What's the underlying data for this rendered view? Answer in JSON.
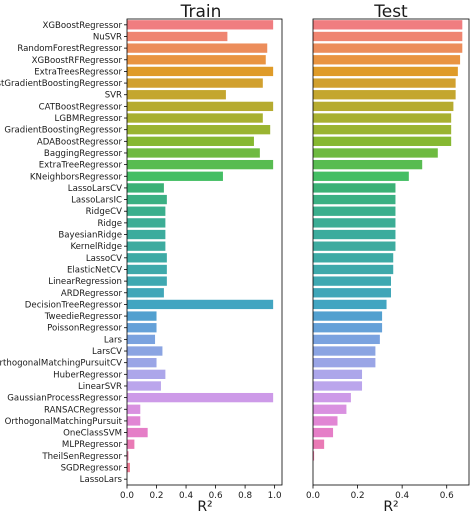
{
  "chart_data": [
    {
      "type": "bar",
      "orientation": "horizontal",
      "title": "Train",
      "xlabel": "R²",
      "xlim": [
        0,
        1.05
      ],
      "xticks": [
        "0.0",
        "0.2",
        "0.4",
        "0.6",
        "0.8",
        "1.0"
      ],
      "grid": false,
      "categories": [
        "XGBoostRegressor",
        "NuSVR",
        "RandomForestRegressor",
        "XGBoostRFRegressor",
        "ExtraTreesRegressor",
        "HistGradientBoostingRegressor",
        "SVR",
        "CATBoostRegressor",
        "LGBMRegressor",
        "GradientBoostingRegressor",
        "ADABoostRegressor",
        "BaggingRegressor",
        "ExtraTreeRegressor",
        "KNeighborsRegressor",
        "LassoLarsCV",
        "LassoLarsIC",
        "RidgeCV",
        "Ridge",
        "BayesianRidge",
        "KernelRidge",
        "LassoCV",
        "ElasticNetCV",
        "LinearRegression",
        "ARDRegressor",
        "DecisionTreeRegressor",
        "TweedieRegressor",
        "PoissonRegressor",
        "Lars",
        "LarsCV",
        "OrthogonalMatchingPursuitCV",
        "HuberRegressor",
        "LinearSVR",
        "GaussianProcessRegressor",
        "RANSACRegressor",
        "OrthogonalMatchingPursuit",
        "OneClassSVM",
        "MLPRegressor",
        "TheilSenRegressor",
        "SGDRegressor",
        "LassoLars"
      ],
      "values": [
        0.99,
        0.68,
        0.95,
        0.94,
        0.99,
        0.92,
        0.67,
        0.99,
        0.92,
        0.97,
        0.86,
        0.9,
        0.99,
        0.65,
        0.25,
        0.27,
        0.26,
        0.26,
        0.26,
        0.26,
        0.27,
        0.27,
        0.27,
        0.25,
        0.99,
        0.2,
        0.2,
        0.19,
        0.24,
        0.2,
        0.26,
        0.23,
        0.99,
        0.09,
        0.09,
        0.14,
        0.05,
        0.01,
        0.02,
        0.0
      ]
    },
    {
      "type": "bar",
      "orientation": "horizontal",
      "title": "Test",
      "xlabel": "R²",
      "xlim": [
        0,
        0.7
      ],
      "xticks": [
        "0.0",
        "0.2",
        "0.4",
        "0.6"
      ],
      "grid": false,
      "categories": [
        "XGBoostRegressor",
        "NuSVR",
        "RandomForestRegressor",
        "XGBoostRFRegressor",
        "ExtraTreesRegressor",
        "HistGradientBoostingRegressor",
        "SVR",
        "CATBoostRegressor",
        "LGBMRegressor",
        "GradientBoostingRegressor",
        "ADABoostRegressor",
        "BaggingRegressor",
        "ExtraTreeRegressor",
        "KNeighborsRegressor",
        "LassoLarsCV",
        "LassoLarsIC",
        "RidgeCV",
        "Ridge",
        "BayesianRidge",
        "KernelRidge",
        "LassoCV",
        "ElasticNetCV",
        "LinearRegression",
        "ARDRegressor",
        "DecisionTreeRegressor",
        "TweedieRegressor",
        "PoissonRegressor",
        "Lars",
        "LarsCV",
        "OrthogonalMatchingPursuitCV",
        "HuberRegressor",
        "LinearSVR",
        "GaussianProcessRegressor",
        "RANSACRegressor",
        "OrthogonalMatchingPursuit",
        "OneClassSVM",
        "MLPRegressor",
        "TheilSenRegressor",
        "SGDRegressor",
        "LassoLars"
      ],
      "values": [
        0.67,
        0.67,
        0.67,
        0.66,
        0.65,
        0.64,
        0.64,
        0.63,
        0.62,
        0.62,
        0.62,
        0.56,
        0.49,
        0.43,
        0.37,
        0.37,
        0.37,
        0.37,
        0.37,
        0.37,
        0.36,
        0.36,
        0.35,
        0.35,
        0.33,
        0.31,
        0.31,
        0.3,
        0.28,
        0.28,
        0.22,
        0.22,
        0.17,
        0.15,
        0.11,
        0.09,
        0.05,
        0.005,
        0.0,
        0.0
      ]
    }
  ],
  "colors": [
    "#f07d80",
    "#ef8571",
    "#ec8d5b",
    "#e99441",
    "#df9b28",
    "#d1a02e",
    "#c4a62f",
    "#b6ab30",
    "#a8b030",
    "#9ab431",
    "#86b831",
    "#6eba40",
    "#58bc51",
    "#44be64",
    "#3cb176",
    "#3bb083",
    "#3baf8d",
    "#3cad95",
    "#3cac9d",
    "#3dab9f",
    "#3eaaa5",
    "#3ea9ab",
    "#3fa8b1",
    "#40a6b8",
    "#42a5c1",
    "#52a0cf",
    "#65a1d8",
    "#7aa2df",
    "#8ba4e2",
    "#9aa5e6",
    "#aca6ea",
    "#bba5ec",
    "#cd9ae8",
    "#d991e0",
    "#e186d4",
    "#e57ec7",
    "#e97ab5",
    "#ec7aa4",
    "#ee7a94",
    "#ef7c86"
  ]
}
